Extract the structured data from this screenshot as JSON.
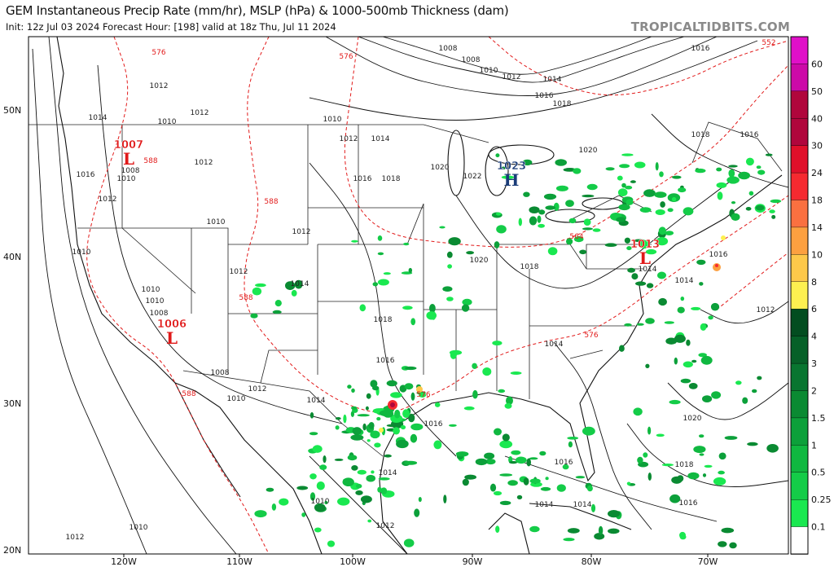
{
  "header": {
    "title": "GEM Instantaneous Precip Rate (mm/hr), MSLP (hPa) & 1000-500mb Thickness (dam)",
    "subtitle": "Init: 12z Jul 03 2024   Forecast Hour: [198]   valid at 18z Thu, Jul 11 2024",
    "brand": "TROPICALTIDBITS.COM"
  },
  "axes": {
    "lat_labels": [
      "50N",
      "40N",
      "30N",
      "20N"
    ],
    "lon_labels": [
      "120W",
      "110W",
      "100W",
      "90W",
      "80W",
      "70W"
    ]
  },
  "pressure_centers": [
    {
      "type": "L",
      "value": "1007",
      "color": "#e01818"
    },
    {
      "type": "L",
      "value": "1006",
      "color": "#e01818"
    },
    {
      "type": "H",
      "value": "1023",
      "color": "#1a3c78"
    },
    {
      "type": "L",
      "value": "1013",
      "color": "#e01818"
    }
  ],
  "isobar_labels": [
    "1008",
    "1008",
    "1010",
    "1012",
    "1014",
    "1016",
    "1018",
    "1016",
    "1020",
    "1018",
    "1016",
    "1012",
    "1014",
    "1010",
    "1012",
    "1010",
    "1012",
    "1014",
    "1008",
    "1010",
    "1016",
    "1012",
    "1012",
    "1016",
    "1018",
    "1020",
    "1022",
    "1012",
    "1010",
    "1010",
    "1012",
    "1014",
    "1010",
    "1010",
    "1008",
    "1018",
    "1020",
    "1018",
    "1016",
    "1016",
    "1014",
    "1014",
    "1014",
    "1012",
    "1008",
    "1010",
    "1012",
    "1014",
    "1016",
    "1014",
    "1016",
    "1018",
    "1020",
    "1010",
    "1012",
    "1014",
    "1014",
    "1016",
    "1012",
    "1010"
  ],
  "thickness_labels": [
    "576",
    "576",
    "552",
    "588",
    "588",
    "588",
    "564",
    "576",
    "588",
    "576"
  ],
  "colorbar": {
    "labels": [
      "60",
      "50",
      "40",
      "30",
      "24",
      "18",
      "14",
      "10",
      "8",
      "6",
      "4",
      "3",
      "2",
      "1.5",
      "1",
      "0.5",
      "0.25",
      "0.1"
    ],
    "colors": [
      "#e010c8",
      "#cc0aa8",
      "#b0063c",
      "#b0063c",
      "#e0102a",
      "#f52a30",
      "#fa7040",
      "#fca040",
      "#fdc84a",
      "#fdf050",
      "#034d20",
      "#066028",
      "#087530",
      "#0a8a32",
      "#0ca03a",
      "#10b840",
      "#14cc48",
      "#1ae850",
      "#ffffff"
    ]
  }
}
